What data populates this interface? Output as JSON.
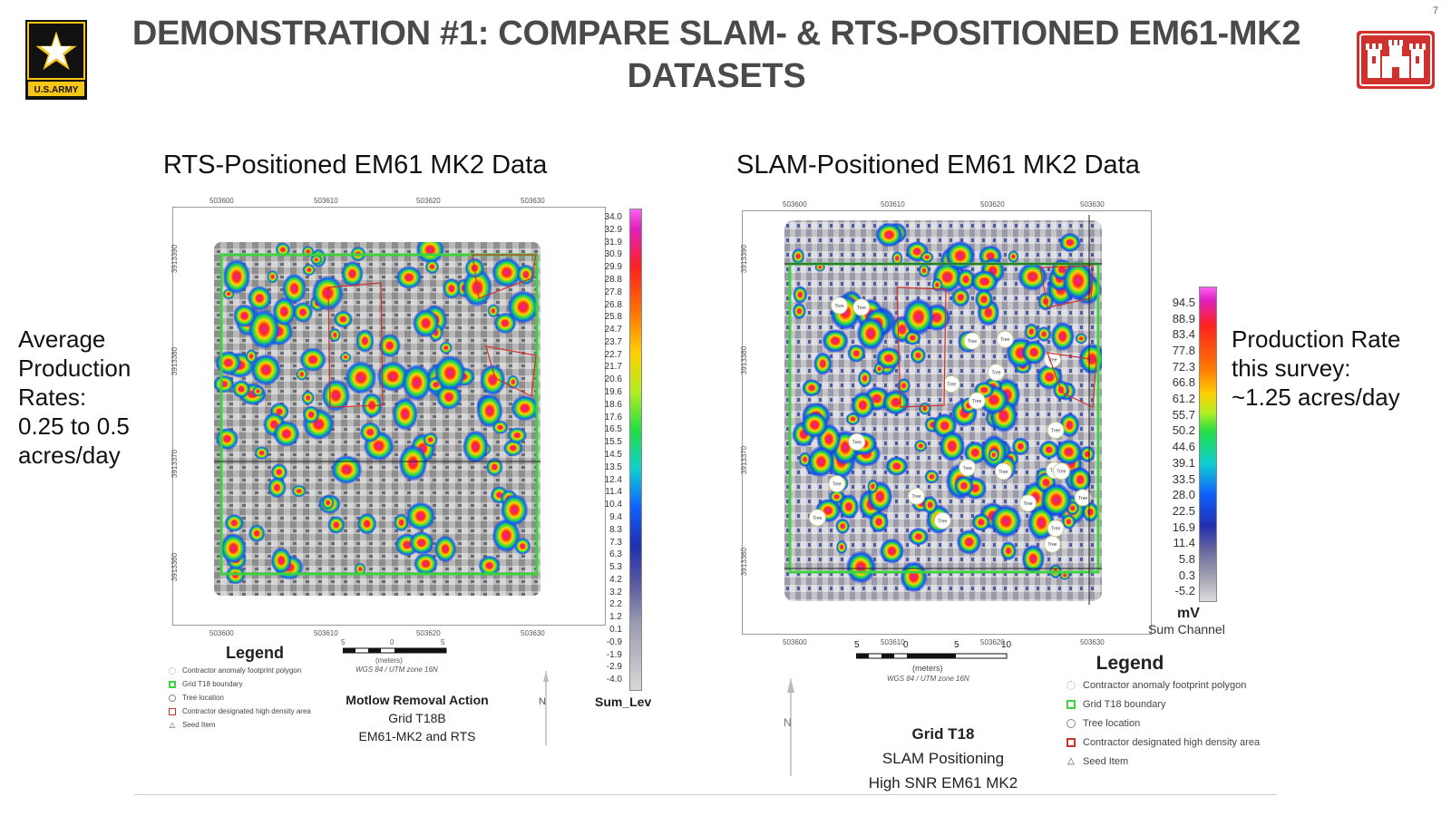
{
  "header": {
    "title": "DEMONSTRATION #1: COMPARE SLAM- & RTS-POSITIONED EM61-MK2 DATASETS",
    "page_number": "7",
    "army_logo_text": "U.S.ARMY"
  },
  "left_panel": {
    "title": "RTS-Positioned EM61 MK2 Data",
    "side_text": [
      "Average",
      "Production",
      "Rates:",
      "0.25 to 0.5",
      "acres/day"
    ],
    "x_ticks": [
      "503600",
      "503610",
      "503620",
      "503630"
    ],
    "y_ticks": [
      "3913390",
      "3913380",
      "3913370",
      "3913360"
    ],
    "colorbar_labels": [
      "34.0",
      "32.9",
      "31.9",
      "30.9",
      "29.9",
      "28.8",
      "27.8",
      "26.8",
      "25.8",
      "24.7",
      "23.7",
      "22.7",
      "21.7",
      "20.6",
      "19.6",
      "18.6",
      "17.6",
      "16.5",
      "15.5",
      "14.5",
      "13.5",
      "12.4",
      "11.4",
      "10.4",
      "9.4",
      "8.3",
      "7.3",
      "6.3",
      "5.3",
      "4.2",
      "3.2",
      "2.2",
      "1.2",
      "0.1",
      "-0.9",
      "-1.9",
      "-2.9",
      "-4.0"
    ],
    "colorbar_title": "Sum_Lev",
    "legend": {
      "title": "Legend",
      "items": [
        "Contractor anomaly footprint polygon",
        "Grid T18 boundary",
        "Tree location",
        "Contractor designated high density area",
        "Seed Item"
      ]
    },
    "scale": {
      "ticks": [
        "5",
        "0",
        "5"
      ],
      "units": "(meters)",
      "projection": "WGS 84 / UTM zone 16N"
    },
    "caption": {
      "line1": "Motlow Removal Action",
      "line2": "Grid T18B",
      "line3": "EM61-MK2 and RTS"
    },
    "north": "N"
  },
  "right_panel": {
    "title": "SLAM-Positioned EM61 MK2 Data",
    "side_text": [
      "Production Rate",
      "this survey:",
      "~1.25 acres/day"
    ],
    "x_ticks": [
      "503600",
      "503610",
      "503620",
      "503630"
    ],
    "y_ticks": [
      "3913390",
      "3913380",
      "3913370",
      "3913360"
    ],
    "colorbar_labels": [
      "94.5",
      "88.9",
      "83.4",
      "77.8",
      "72.3",
      "66.8",
      "61.2",
      "55.7",
      "50.2",
      "44.6",
      "39.1",
      "33.5",
      "28.0",
      "22.5",
      "16.9",
      "11.4",
      "5.8",
      "0.3",
      "-5.2"
    ],
    "colorbar_unit": "mV",
    "colorbar_title": "Sum Channel",
    "legend": {
      "title": "Legend",
      "items": [
        "Contractor anomaly footprint polygon",
        "Grid T18 boundary",
        "Tree location",
        "Contractor designated high density area",
        "Seed Item"
      ]
    },
    "scale": {
      "ticks": [
        "5",
        "0",
        "5",
        "10"
      ],
      "units": "(meters)",
      "projection": "WGS 84 / UTM zone 16N"
    },
    "caption": {
      "line1": "Grid T18",
      "line2": "SLAM Positioning",
      "line3": "High SNR EM61 MK2"
    },
    "north": "N",
    "tree_label": "Tree"
  },
  "colors": {
    "grid_boundary": "#3ed23e",
    "high_density": "#d0312d",
    "army_gold": "#f5c518",
    "usace_red": "#d0312d"
  }
}
